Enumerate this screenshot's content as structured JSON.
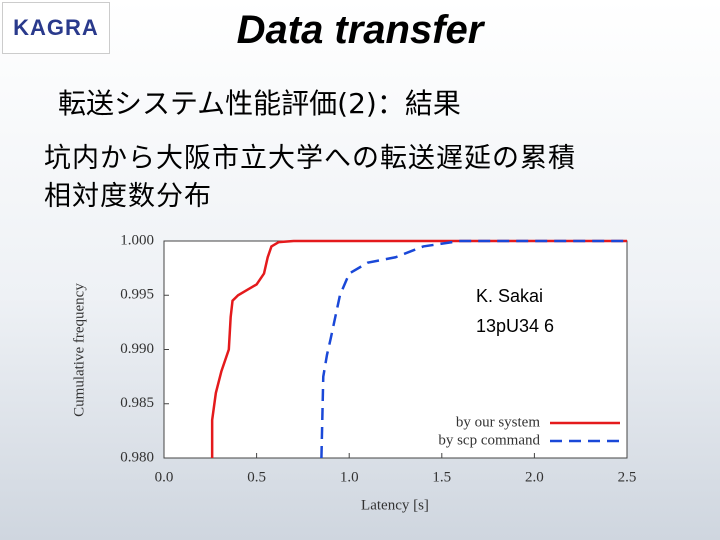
{
  "slide": {
    "logo": "KAGRA",
    "title": "Data transfer",
    "subtitle": "転送システム性能評価(2)：結果",
    "body": [
      "坑内から大阪市立大学への転送遅延の累積",
      "相対度数分布"
    ]
  },
  "chart_data": {
    "type": "line",
    "xlabel": "Latency [s]",
    "ylabel": "Cumulative frequency",
    "annotation": [
      "K. Sakai",
      "13pU34 6"
    ],
    "xlim": [
      0,
      2.5
    ],
    "ylim": [
      0.98,
      1.0
    ],
    "xticks": [
      {
        "value": 0,
        "label": "0.0"
      },
      0.5,
      {
        "value": 1,
        "label": "1.0"
      },
      1.5,
      {
        "value": 2,
        "label": "2.0"
      },
      2.5
    ],
    "yticks": [
      {
        "value": 0.98,
        "label": "0.980"
      },
      0.985,
      {
        "value": 0.99,
        "label": "0.990"
      },
      0.995,
      {
        "value": 1,
        "label": "1.000"
      }
    ],
    "grid": false,
    "legend": "lower right",
    "series": [
      {
        "name": "by our system",
        "color": "#e41a1c",
        "linestyle": "solid",
        "x": [
          0.26,
          0.26,
          0.28,
          0.31,
          0.35,
          0.36,
          0.37,
          0.4,
          0.45,
          0.5,
          0.54,
          0.56,
          0.58,
          0.62,
          0.7,
          1.0,
          2.5
        ],
        "values": [
          0.98,
          0.9835,
          0.986,
          0.988,
          0.99,
          0.993,
          0.9945,
          0.995,
          0.9955,
          0.996,
          0.997,
          0.9985,
          0.9995,
          0.9999,
          1.0,
          1.0,
          1.0
        ]
      },
      {
        "name": "by scp command",
        "color": "#1a48d8",
        "linestyle": "dashed",
        "x": [
          0.85,
          0.86,
          0.88,
          0.9,
          0.95,
          1.0,
          1.1,
          1.25,
          1.4,
          1.6,
          2.0,
          2.5
        ],
        "values": [
          0.98,
          0.9875,
          0.9895,
          0.991,
          0.995,
          0.997,
          0.998,
          0.9985,
          0.9995,
          1.0,
          1.0,
          1.0
        ]
      }
    ]
  }
}
